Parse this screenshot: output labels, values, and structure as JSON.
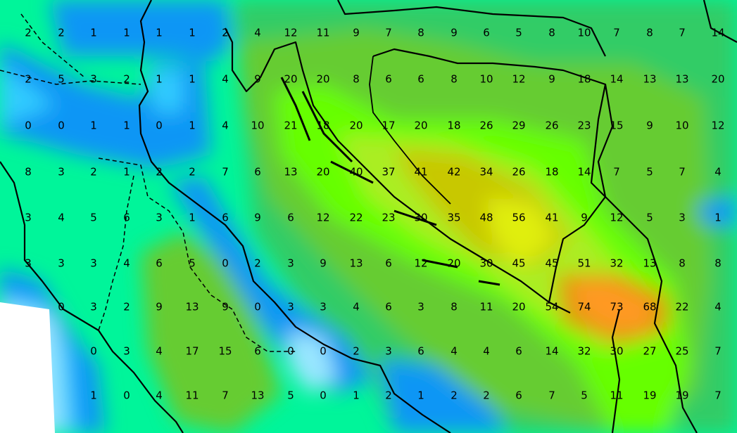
{
  "map": {
    "palette": {
      "sea_white": "#ffffff",
      "light_blue": "#99e6ff",
      "sky_blue": "#33ccff",
      "blue": "#0a96f5",
      "mint": "#00f59a",
      "green": "#33cc66",
      "olive_green": "#66cc33",
      "bright_green": "#66ff00",
      "yellow_green": "#aaee22",
      "olive": "#c8c800",
      "yellow": "#e0ee10",
      "dark_orange": "#dd9900",
      "orange": "#ff9922",
      "outline": "#000000"
    },
    "grid_values": [
      [
        "2",
        "2",
        "1",
        "1",
        "1",
        "1",
        "2",
        "4",
        "12",
        "11",
        "9",
        "7",
        "8",
        "9",
        "6",
        "5",
        "8",
        "10",
        "7",
        "8",
        "7",
        "14"
      ],
      [
        "2",
        "5",
        "3",
        "2",
        "1",
        "1",
        "4",
        "9",
        "20",
        "20",
        "8",
        "6",
        "6",
        "8",
        "10",
        "12",
        "9",
        "18",
        "14",
        "13",
        "13",
        "20"
      ],
      [
        "0",
        "0",
        "1",
        "1",
        "0",
        "1",
        "4",
        "10",
        "21",
        "18",
        "20",
        "17",
        "20",
        "18",
        "26",
        "29",
        "26",
        "23",
        "15",
        "9",
        "10",
        "12"
      ],
      [
        "8",
        "3",
        "2",
        "1",
        "2",
        "2",
        "7",
        "6",
        "13",
        "20",
        "40",
        "37",
        "41",
        "42",
        "34",
        "26",
        "18",
        "14",
        "7",
        "5",
        "7",
        "4"
      ],
      [
        "3",
        "4",
        "5",
        "6",
        "3",
        "1",
        "6",
        "9",
        "6",
        "12",
        "22",
        "23",
        "30",
        "35",
        "48",
        "56",
        "41",
        "9",
        "12",
        "5",
        "3",
        "1"
      ],
      [
        "3",
        "3",
        "3",
        "4",
        "6",
        "5",
        "0",
        "2",
        "3",
        "9",
        "13",
        "6",
        "12",
        "20",
        "30",
        "45",
        "45",
        "51",
        "32",
        "13",
        "8",
        "8"
      ],
      [
        "",
        "0",
        "3",
        "2",
        "9",
        "13",
        "9",
        "0",
        "3",
        "3",
        "4",
        "6",
        "3",
        "8",
        "11",
        "20",
        "54",
        "74",
        "73",
        "68",
        "22",
        "4"
      ],
      [
        "",
        "",
        "0",
        "3",
        "4",
        "17",
        "15",
        "6",
        "0",
        "0",
        "2",
        "3",
        "6",
        "4",
        "4",
        "6",
        "14",
        "32",
        "30",
        "27",
        "25",
        "7"
      ],
      [
        "",
        "",
        "1",
        "0",
        "4",
        "11",
        "7",
        "13",
        "5",
        "0",
        "1",
        "2",
        "1",
        "2",
        "2",
        "6",
        "7",
        "5",
        "11",
        "19",
        "19",
        "7"
      ]
    ]
  }
}
